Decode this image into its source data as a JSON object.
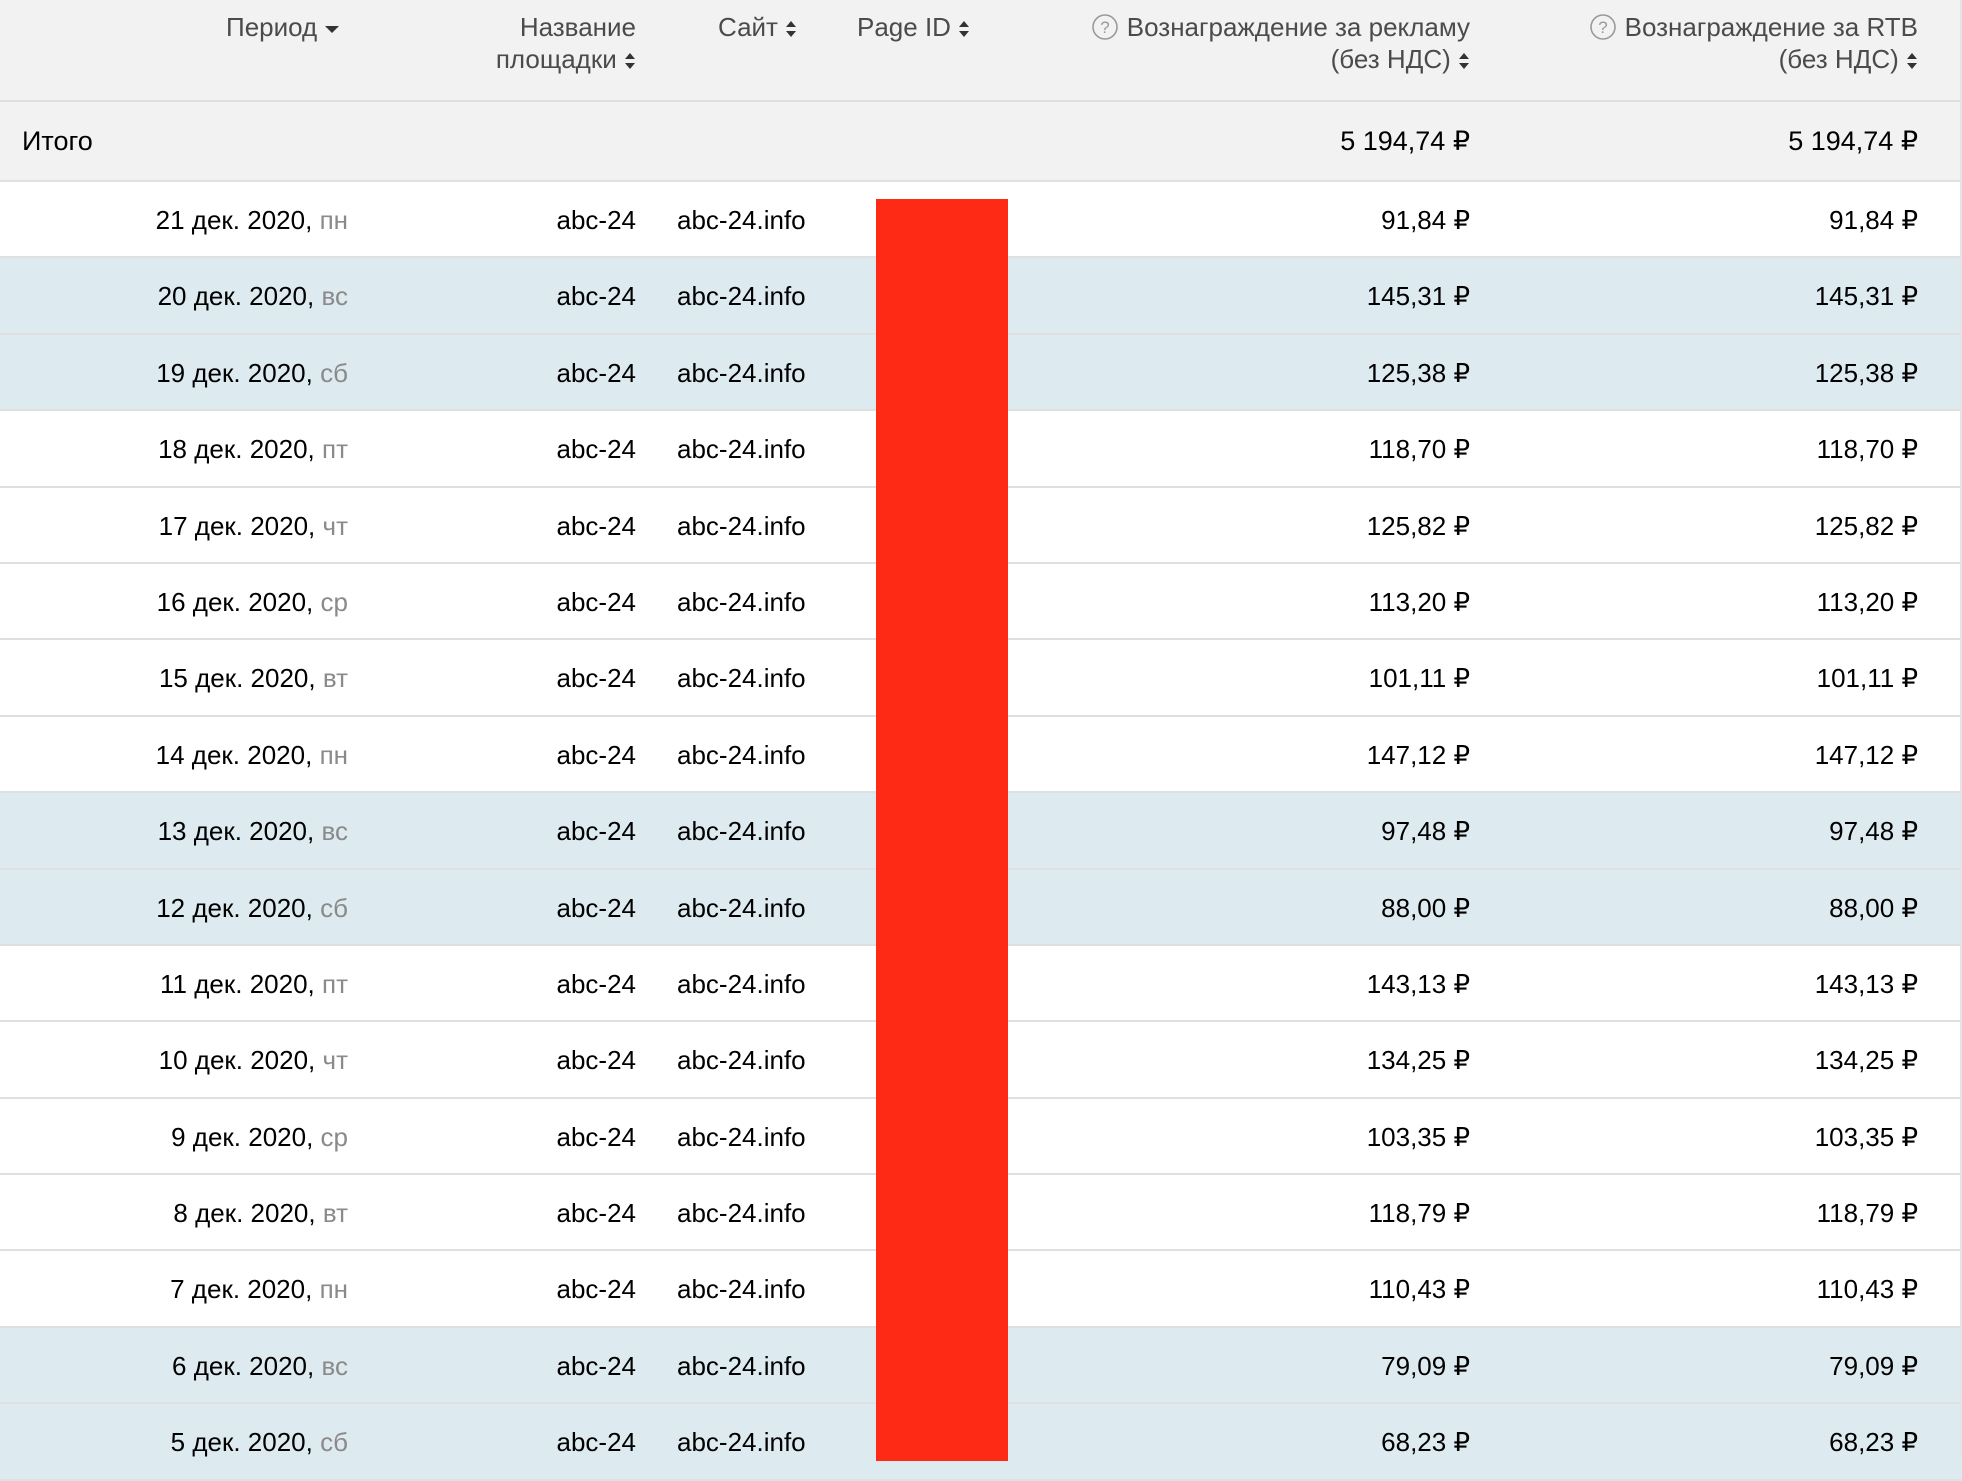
{
  "table": {
    "columns": {
      "period": "Период",
      "place_name_line1": "Название",
      "place_name_line2": "площадки",
      "site": "Сайт",
      "page_id": "Page ID",
      "ad_reward_line1": "Вознаграждение за рекламу",
      "ad_reward_line2": "(без НДС)",
      "rtb_reward_line1": "Вознаграждение за RTB",
      "rtb_reward_line2": "(без НДС)"
    },
    "total": {
      "label": "Итого",
      "ad_reward": "5 194,74 ₽",
      "rtb_reward": "5 194,74 ₽"
    },
    "rows": [
      {
        "date": "21 дек. 2020,",
        "weekday": "пн",
        "name": "abc-24",
        "site": "abc-24.info",
        "ad_reward": "91,84 ₽",
        "rtb_reward": "91,84 ₽",
        "highlighted": false
      },
      {
        "date": "20 дек. 2020,",
        "weekday": "вс",
        "name": "abc-24",
        "site": "abc-24.info",
        "ad_reward": "145,31 ₽",
        "rtb_reward": "145,31 ₽",
        "highlighted": true
      },
      {
        "date": "19 дек. 2020,",
        "weekday": "сб",
        "name": "abc-24",
        "site": "abc-24.info",
        "ad_reward": "125,38 ₽",
        "rtb_reward": "125,38 ₽",
        "highlighted": true
      },
      {
        "date": "18 дек. 2020,",
        "weekday": "пт",
        "name": "abc-24",
        "site": "abc-24.info",
        "ad_reward": "118,70 ₽",
        "rtb_reward": "118,70 ₽",
        "highlighted": false
      },
      {
        "date": "17 дек. 2020,",
        "weekday": "чт",
        "name": "abc-24",
        "site": "abc-24.info",
        "ad_reward": "125,82 ₽",
        "rtb_reward": "125,82 ₽",
        "highlighted": false
      },
      {
        "date": "16 дек. 2020,",
        "weekday": "ср",
        "name": "abc-24",
        "site": "abc-24.info",
        "ad_reward": "113,20 ₽",
        "rtb_reward": "113,20 ₽",
        "highlighted": false
      },
      {
        "date": "15 дек. 2020,",
        "weekday": "вт",
        "name": "abc-24",
        "site": "abc-24.info",
        "ad_reward": "101,11 ₽",
        "rtb_reward": "101,11 ₽",
        "highlighted": false
      },
      {
        "date": "14 дек. 2020,",
        "weekday": "пн",
        "name": "abc-24",
        "site": "abc-24.info",
        "ad_reward": "147,12 ₽",
        "rtb_reward": "147,12 ₽",
        "highlighted": false
      },
      {
        "date": "13 дек. 2020,",
        "weekday": "вс",
        "name": "abc-24",
        "site": "abc-24.info",
        "ad_reward": "97,48 ₽",
        "rtb_reward": "97,48 ₽",
        "highlighted": true
      },
      {
        "date": "12 дек. 2020,",
        "weekday": "сб",
        "name": "abc-24",
        "site": "abc-24.info",
        "ad_reward": "88,00 ₽",
        "rtb_reward": "88,00 ₽",
        "highlighted": true
      },
      {
        "date": "11 дек. 2020,",
        "weekday": "пт",
        "name": "abc-24",
        "site": "abc-24.info",
        "ad_reward": "143,13 ₽",
        "rtb_reward": "143,13 ₽",
        "highlighted": false
      },
      {
        "date": "10 дек. 2020,",
        "weekday": "чт",
        "name": "abc-24",
        "site": "abc-24.info",
        "ad_reward": "134,25 ₽",
        "rtb_reward": "134,25 ₽",
        "highlighted": false
      },
      {
        "date": "9 дек. 2020,",
        "weekday": "ср",
        "name": "abc-24",
        "site": "abc-24.info",
        "ad_reward": "103,35 ₽",
        "rtb_reward": "103,35 ₽",
        "highlighted": false
      },
      {
        "date": "8 дек. 2020,",
        "weekday": "вт",
        "name": "abc-24",
        "site": "abc-24.info",
        "ad_reward": "118,79 ₽",
        "rtb_reward": "118,79 ₽",
        "highlighted": false
      },
      {
        "date": "7 дек. 2020,",
        "weekday": "пн",
        "name": "abc-24",
        "site": "abc-24.info",
        "ad_reward": "110,43 ₽",
        "rtb_reward": "110,43 ₽",
        "highlighted": false
      },
      {
        "date": "6 дек. 2020,",
        "weekday": "вс",
        "name": "abc-24",
        "site": "abc-24.info",
        "ad_reward": "79,09 ₽",
        "rtb_reward": "79,09 ₽",
        "highlighted": true
      },
      {
        "date": "5 дек. 2020,",
        "weekday": "сб",
        "name": "abc-24",
        "site": "abc-24.info",
        "ad_reward": "68,23 ₽",
        "rtb_reward": "68,23 ₽",
        "highlighted": true
      }
    ]
  },
  "colors": {
    "header_bg": "#f2f2f2",
    "weekend_row_bg": "#ddeaef",
    "redaction": "#ff2a16",
    "weekday_text": "#8a8a8a"
  }
}
